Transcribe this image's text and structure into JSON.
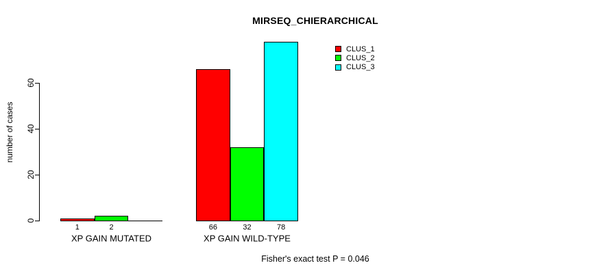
{
  "title": "MIRSEQ_CHIERARCHICAL",
  "footer": "Fisher's exact test P = 0.046",
  "colors": {
    "background": "#ffffff",
    "axis": "#000000",
    "bar_border": "#000000",
    "clus_1": "#ff0000",
    "clus_2": "#00ff00",
    "clus_3": "#00ffff"
  },
  "chart_data": {
    "type": "bar",
    "title": "MIRSEQ_CHIERARCHICAL",
    "xlabel": "",
    "ylabel": "number of cases",
    "ylim": [
      0,
      80
    ],
    "yticks": [
      0,
      20,
      40,
      60
    ],
    "grid": false,
    "legend_position": "top-right-outside-plot",
    "categories": [
      "XP GAIN MUTATED",
      "XP GAIN WILD-TYPE"
    ],
    "series": [
      {
        "name": "CLUS_1",
        "color": "#ff0000",
        "values": [
          1,
          66
        ]
      },
      {
        "name": "CLUS_2",
        "color": "#00ff00",
        "values": [
          2,
          32
        ]
      },
      {
        "name": "CLUS_3",
        "color": "#00ffff",
        "values": [
          0,
          78
        ]
      }
    ],
    "value_labels": [
      [
        "1",
        "2",
        ""
      ],
      [
        "66",
        "32",
        "78"
      ]
    ],
    "annotation": "Fisher's exact test P = 0.046"
  }
}
